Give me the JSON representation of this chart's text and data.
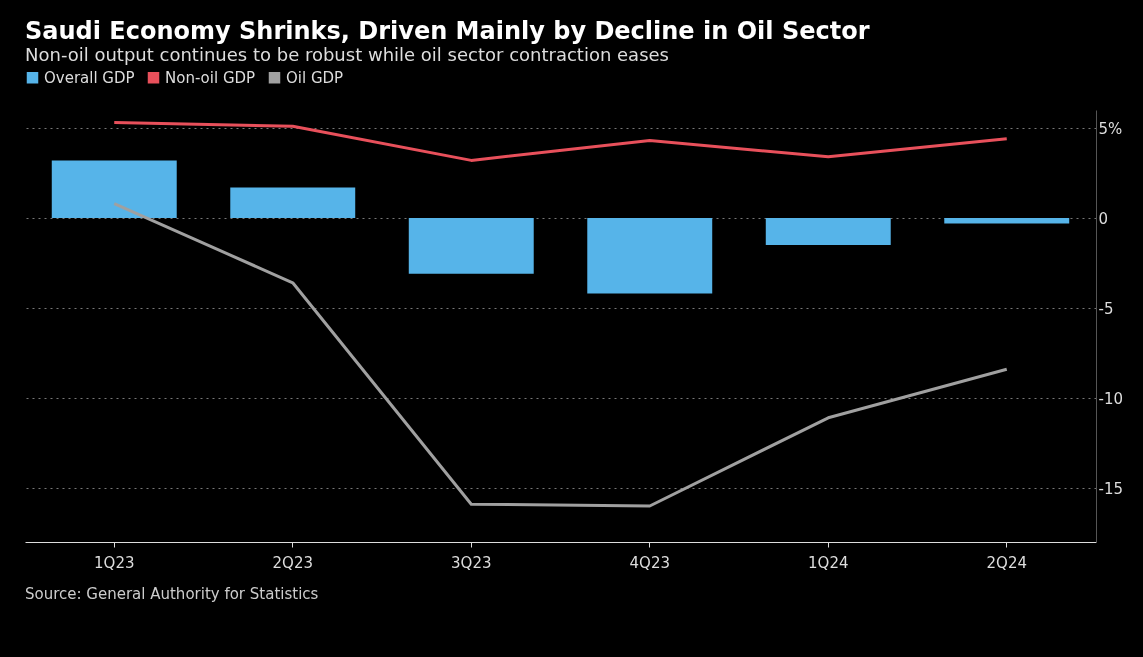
{
  "chart_data": {
    "type": "bar",
    "title": "Saudi Economy Shrinks, Driven Mainly by Decline in Oil Sector",
    "subtitle": "Non-oil output continues to be robust while oil sector contraction eases",
    "categories": [
      "1Q23",
      "2Q23",
      "3Q23",
      "4Q23",
      "1Q24",
      "2Q24"
    ],
    "series": [
      {
        "name": "Overall GDP",
        "color": "#56b4e9",
        "values": [
          3.2,
          1.7,
          -3.1,
          -4.2,
          -1.5,
          -0.3
        ]
      },
      {
        "name": "Non-oil GDP",
        "type": "line",
        "color": "#e8505b",
        "values": [
          5.3,
          5.1,
          3.2,
          4.3,
          3.4,
          4.4
        ]
      },
      {
        "name": "Oil GDP",
        "type": "line",
        "color": "#a0a0a0",
        "values": [
          0.8,
          -3.6,
          -15.9,
          -16.0,
          -11.1,
          -8.4
        ]
      }
    ],
    "ylim": [
      -18,
      6
    ],
    "yticks": [
      {
        "value": 5,
        "label": "5%"
      },
      0,
      -5,
      -10,
      -15
    ],
    "grid": "y",
    "legend": "top left",
    "annotations": [
      "Source: General Authority for Statistics"
    ]
  }
}
